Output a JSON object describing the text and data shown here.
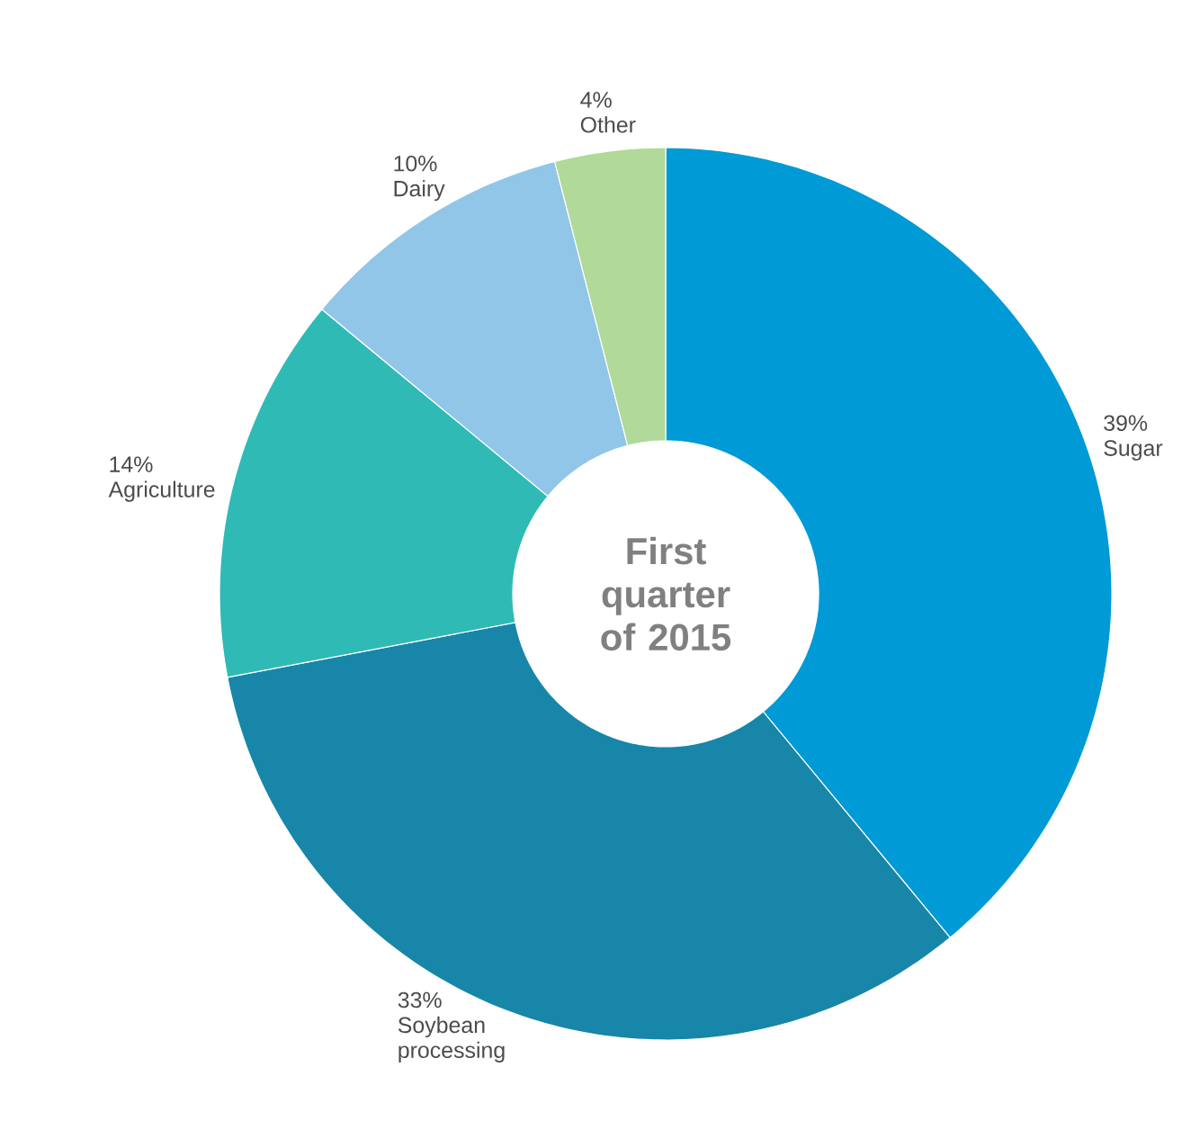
{
  "chart_data": {
    "type": "donut",
    "title": "First quarter of 2015",
    "categories": [
      "Sugar",
      "Soybean processing",
      "Agriculture",
      "Dairy",
      "Other"
    ],
    "values": [
      39,
      33,
      14,
      10,
      4
    ],
    "value_labels": [
      "39%",
      "33%",
      "14%",
      "10%",
      "4%"
    ],
    "colors": [
      "#009ad6",
      "#1786a8",
      "#2fbab5",
      "#91c6e8",
      "#b0d99a"
    ]
  }
}
